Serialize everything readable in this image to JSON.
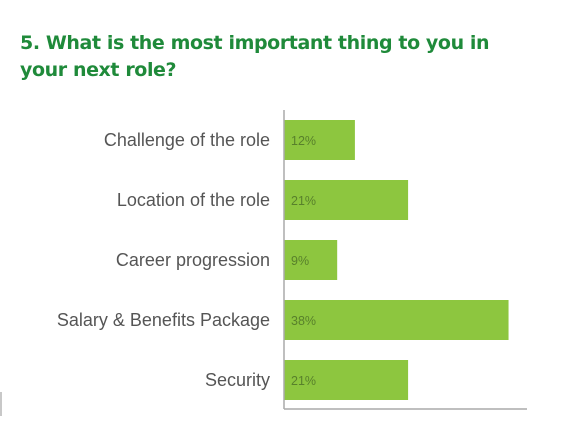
{
  "question": {
    "title": "5. What is the most important thing to you in your next role?"
  },
  "colors": {
    "title": "#1f8a3a",
    "bar": "#8dc63f",
    "axis": "#aaaaaa",
    "category_text": "#555555",
    "value_text": "#58802b"
  },
  "chart_data": {
    "type": "bar",
    "orientation": "horizontal",
    "title": "5. What is the most important thing to you in your next role?",
    "categories": [
      "Challenge of the role",
      "Location of the role",
      "Career progression",
      "Salary & Benefits Package",
      "Security"
    ],
    "values": [
      12,
      21,
      9,
      38,
      21
    ],
    "value_labels": [
      "12%",
      "21%",
      "9%",
      "38%",
      "21%"
    ],
    "unit": "%",
    "xlim": [
      0,
      44
    ],
    "grid": false,
    "legend": "none"
  }
}
